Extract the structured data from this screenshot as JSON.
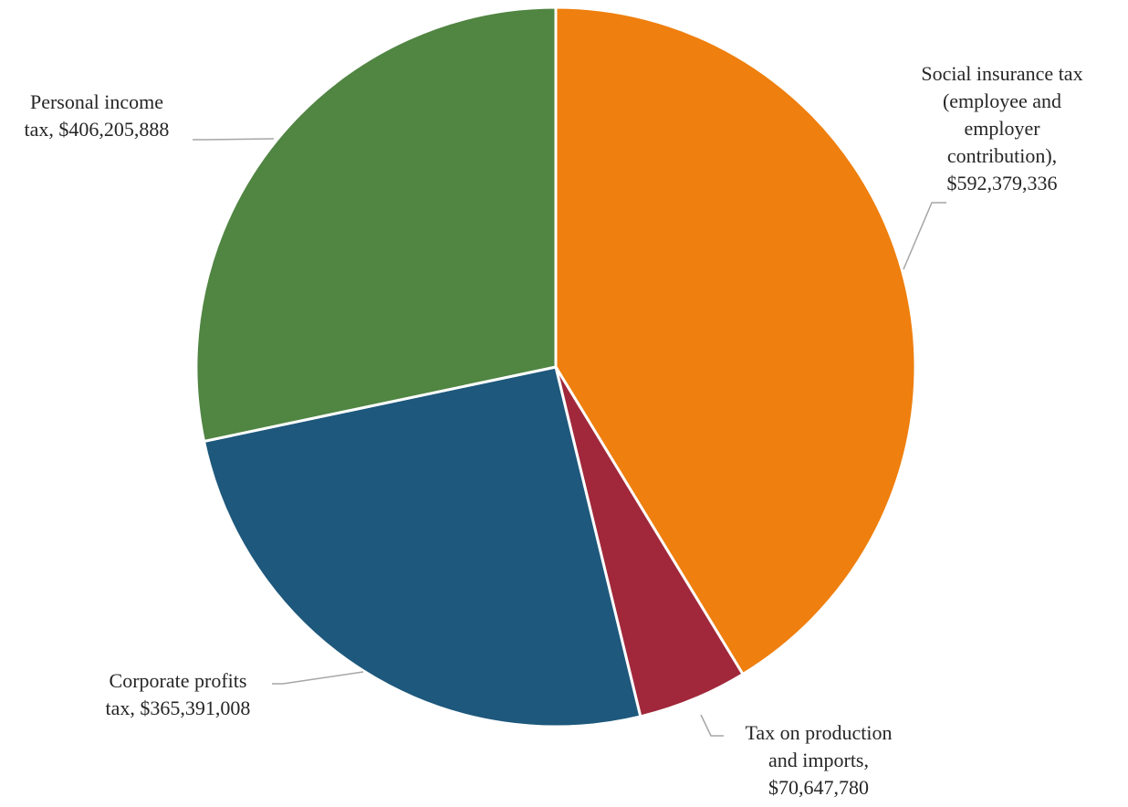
{
  "chart_data": {
    "type": "pie",
    "title": "",
    "start_angle_deg": 0,
    "direction": "clockwise",
    "slices": [
      {
        "name": "Social insurance tax (employee and employer contribution)",
        "value": 592379336,
        "color": "#ef7f0e",
        "label_lines": [
          "Social insurance tax",
          "(employee and",
          "employer",
          "contribution),",
          "$592,379,336"
        ]
      },
      {
        "name": "Tax on production and imports",
        "value": 70647780,
        "color": "#a0283a",
        "label_lines": [
          "Tax on production",
          "and imports,",
          "$70,647,780"
        ]
      },
      {
        "name": "Corporate profits tax",
        "value": 365391008,
        "color": "#1e587c",
        "label_lines": [
          "Corporate profits",
          "tax, $365,391,008"
        ]
      },
      {
        "name": "Personal income tax",
        "value": 406205888,
        "color": "#508542",
        "label_lines": [
          "Personal income",
          "tax, $406,205,888"
        ]
      }
    ]
  }
}
